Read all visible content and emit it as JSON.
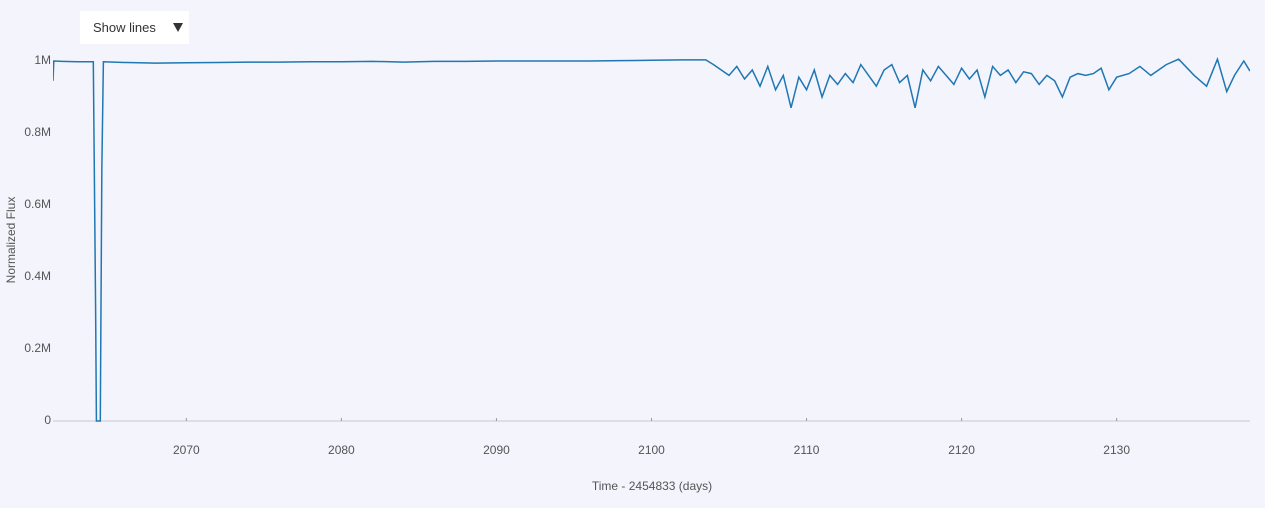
{
  "chart_data": {
    "type": "line",
    "xlabel": "Time - 2454833 (days)",
    "ylabel": "Normalized Flux",
    "xlim": [
      2061.4,
      2138.6
    ],
    "ylim": [
      0,
      1050000
    ],
    "xticks": [
      2070,
      2080,
      2090,
      2100,
      2110,
      2120,
      2130
    ],
    "yticks": [
      0,
      {
        "value": 200000,
        "label": "0.2M"
      },
      {
        "value": 400000,
        "label": "0.4M"
      },
      {
        "value": 600000,
        "label": "0.6M"
      },
      {
        "value": 800000,
        "label": "0.8M"
      },
      {
        "value": 1000000,
        "label": "1M"
      }
    ],
    "grid": false,
    "series": [
      {
        "color": "#1f77b4",
        "x": [
          2061.4,
          2061.45,
          2062,
          2063,
          2064.0,
          2064.15,
          2064.2,
          2064.25,
          2064.35,
          2064.45,
          2064.55,
          2064.65,
          2066,
          2068,
          2070,
          2072,
          2074,
          2076,
          2078,
          2080,
          2082,
          2084,
          2086,
          2088,
          2090,
          2092,
          2094,
          2096,
          2098,
          2100,
          2102,
          2103.5,
          2104,
          2104.5,
          2105,
          2105.5,
          2106,
          2106.5,
          2107,
          2107.5,
          2108,
          2108.5,
          2109,
          2109.5,
          2110,
          2110.5,
          2111,
          2111.5,
          2112,
          2112.5,
          2113,
          2113.5,
          2114,
          2114.5,
          2115,
          2115.5,
          2116,
          2116.5,
          2117,
          2117.5,
          2118,
          2118.5,
          2119,
          2119.5,
          2120,
          2120.5,
          2121,
          2121.5,
          2122,
          2122.5,
          2123,
          2123.5,
          2124,
          2124.5,
          2125,
          2125.5,
          2126,
          2126.5,
          2127,
          2127.5,
          2128,
          2128.5,
          2129,
          2129.5,
          2130,
          2130.8,
          2131.5,
          2132.2,
          2133.2,
          2134,
          2135,
          2135.8,
          2136.5,
          2137.1,
          2137.6,
          2138.2,
          2138.6
        ],
        "values": [
          945000,
          1000000,
          999000,
          998000,
          998000,
          300000,
          0,
          0,
          0,
          0,
          700000,
          998000,
          996000,
          994000,
          995000,
          996000,
          997000,
          997000,
          998000,
          998000,
          999000,
          997000,
          999000,
          999000,
          1000000,
          1000000,
          1000000,
          1000000,
          1001000,
          1002000,
          1003000,
          1003000,
          990000,
          975000,
          960000,
          985000,
          950000,
          975000,
          930000,
          985000,
          920000,
          960000,
          870000,
          955000,
          920000,
          975000,
          900000,
          960000,
          935000,
          965000,
          940000,
          990000,
          960000,
          930000,
          975000,
          990000,
          940000,
          960000,
          870000,
          975000,
          945000,
          985000,
          960000,
          935000,
          980000,
          950000,
          975000,
          900000,
          985000,
          960000,
          975000,
          940000,
          970000,
          965000,
          935000,
          960000,
          945000,
          900000,
          955000,
          965000,
          960000,
          965000,
          980000,
          920000,
          955000,
          965000,
          985000,
          960000,
          990000,
          1005000,
          960000,
          930000,
          1005000,
          915000,
          960000,
          1000000,
          972000
        ]
      }
    ]
  },
  "controls": {
    "dropdown": "Show lines"
  }
}
